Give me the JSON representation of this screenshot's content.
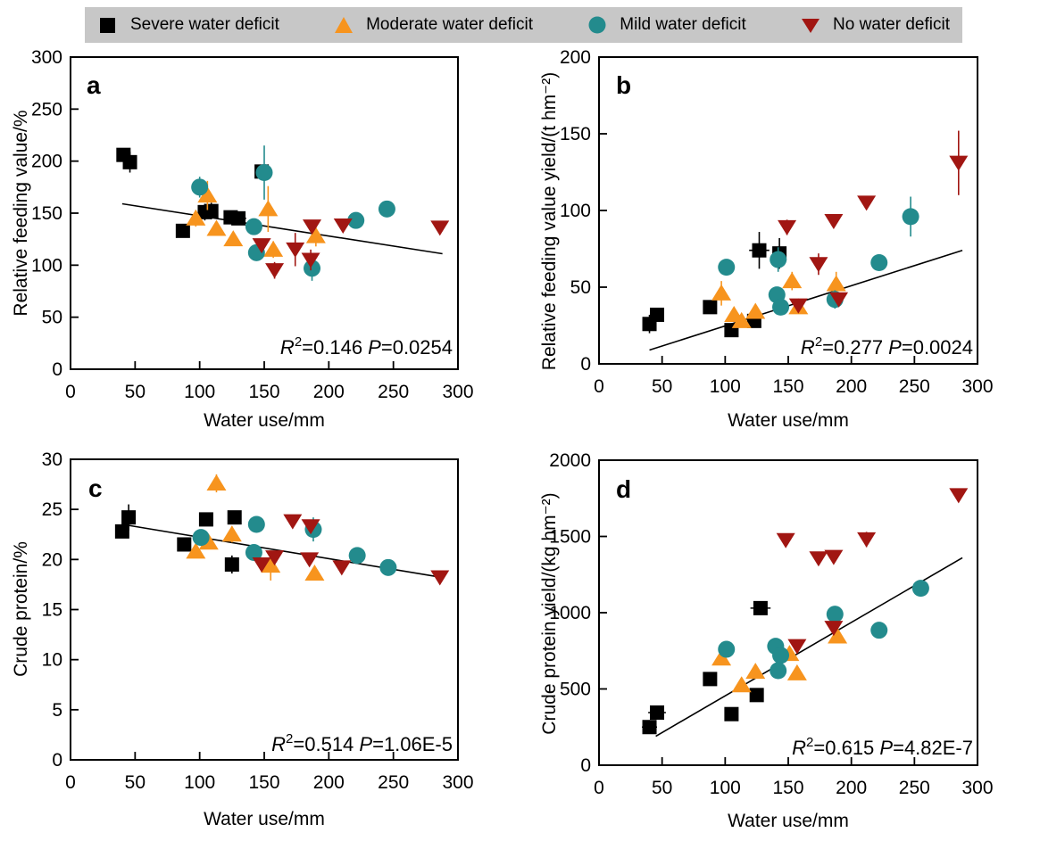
{
  "legend": {
    "background": "#c7c7c7",
    "items": [
      {
        "label": "Severe water deficit",
        "marker": "square",
        "color": "#000000"
      },
      {
        "label": "Moderate water deficit",
        "marker": "triangle-up",
        "color": "#f7941e"
      },
      {
        "label": "Mild water deficit",
        "marker": "circle",
        "color": "#238b8d"
      },
      {
        "label": "No water deficit",
        "marker": "triangle-down",
        "color": "#a11612"
      }
    ]
  },
  "chart_data": [
    {
      "id": "a",
      "type": "scatter",
      "panel_letter": "a",
      "xlabel": "Water use/mm",
      "ylabel": "Relative feeding value/%",
      "xlim": [
        0,
        300
      ],
      "ylim": [
        0,
        300
      ],
      "xticks": [
        0,
        50,
        100,
        150,
        200,
        250,
        300
      ],
      "yticks": [
        0,
        50,
        100,
        150,
        200,
        250,
        300
      ],
      "annotation": {
        "r2": "0.146",
        "p": "0.0254"
      },
      "trendline": {
        "x1": 40,
        "y1": 159,
        "x2": 288,
        "y2": 111
      },
      "legend_position": "none",
      "grid": false,
      "series": [
        {
          "name": "Severe water deficit",
          "marker": "square",
          "color": "#000000",
          "points": [
            [
              41,
              206,
              5,
              4
            ],
            [
              46,
              199,
              10,
              5
            ],
            [
              87,
              133,
              3
            ],
            [
              104,
              151,
              8
            ],
            [
              109,
              152,
              8
            ],
            [
              124,
              146,
              4
            ],
            [
              130,
              145,
              4,
              6
            ],
            [
              148,
              190,
              0
            ]
          ]
        },
        {
          "name": "Moderate water deficit",
          "marker": "triangle-up",
          "color": "#f7941e",
          "points": [
            [
              97,
              145,
              8
            ],
            [
              106,
              167,
              14
            ],
            [
              113,
              135,
              6
            ],
            [
              126,
              125,
              5
            ],
            [
              153,
              154,
              22
            ],
            [
              157,
              115,
              8
            ],
            [
              190,
              128,
              10
            ]
          ]
        },
        {
          "name": "Mild water deficit",
          "marker": "circle",
          "color": "#238b8d",
          "points": [
            [
              100,
              175,
              10
            ],
            [
              142,
              137,
              5
            ],
            [
              150,
              189,
              26
            ],
            [
              144,
              112,
              6
            ],
            [
              187,
              97,
              12
            ],
            [
              221,
              143,
              4
            ],
            [
              245,
              154,
              3
            ]
          ]
        },
        {
          "name": "No water deficit",
          "marker": "triangle-down",
          "color": "#a11612",
          "points": [
            [
              148,
              119,
              6
            ],
            [
              158,
              95,
              8
            ],
            [
              174,
              115,
              16
            ],
            [
              186,
              105,
              10
            ],
            [
              187,
              137,
              4
            ],
            [
              211,
              138,
              5
            ],
            [
              286,
              136,
              4
            ]
          ]
        }
      ]
    },
    {
      "id": "b",
      "type": "scatter",
      "panel_letter": "b",
      "xlabel": "Water use/mm",
      "ylabel": "Relative feeding value yield/(t hm⁻²)",
      "xlim": [
        0,
        300
      ],
      "ylim": [
        0,
        200
      ],
      "xticks": [
        0,
        50,
        100,
        150,
        200,
        250,
        300
      ],
      "yticks": [
        0,
        50,
        100,
        150,
        200
      ],
      "annotation": {
        "r2": "0.277",
        "p": "0.0024"
      },
      "trendline": {
        "x1": 40,
        "y1": 9,
        "x2": 288,
        "y2": 74
      },
      "legend_position": "none",
      "grid": false,
      "series": [
        {
          "name": "Severe water deficit",
          "marker": "square",
          "color": "#000000",
          "points": [
            [
              40,
              26,
              6,
              5
            ],
            [
              46,
              32,
              4
            ],
            [
              88,
              37,
              3
            ],
            [
              105,
              22,
              3
            ],
            [
              123,
              28,
              2
            ],
            [
              127,
              74,
              12,
              8
            ],
            [
              143,
              72,
              10
            ]
          ]
        },
        {
          "name": "Moderate water deficit",
          "marker": "triangle-up",
          "color": "#f7941e",
          "points": [
            [
              97,
              46,
              8
            ],
            [
              107,
              32,
              3
            ],
            [
              113,
              28,
              2
            ],
            [
              124,
              34,
              3
            ],
            [
              153,
              54,
              6
            ],
            [
              158,
              37,
              3
            ],
            [
              188,
              52,
              8
            ]
          ]
        },
        {
          "name": "Mild water deficit",
          "marker": "circle",
          "color": "#238b8d",
          "points": [
            [
              101,
              63,
              3
            ],
            [
              141,
              45,
              3
            ],
            [
              144,
              37,
              2
            ],
            [
              142,
              68,
              8
            ],
            [
              187,
              42,
              6
            ],
            [
              222,
              66,
              3
            ],
            [
              247,
              96,
              13
            ]
          ]
        },
        {
          "name": "No water deficit",
          "marker": "triangle-down",
          "color": "#a11612",
          "points": [
            [
              149,
              89,
              5
            ],
            [
              158,
              38,
              3
            ],
            [
              174,
              65,
              7
            ],
            [
              186,
              93,
              4
            ],
            [
              190,
              42,
              4
            ],
            [
              212,
              105,
              4
            ],
            [
              285,
              131,
              21
            ]
          ]
        }
      ]
    },
    {
      "id": "c",
      "type": "scatter",
      "panel_letter": "c",
      "xlabel": "Water use/mm",
      "ylabel": "Crude protein/%",
      "xlim": [
        0,
        300
      ],
      "ylim": [
        0,
        30
      ],
      "xticks": [
        0,
        50,
        100,
        150,
        200,
        250,
        300
      ],
      "yticks": [
        0,
        5,
        10,
        15,
        20,
        25,
        30
      ],
      "annotation": {
        "r2": "0.514",
        "p": "1.06E-5"
      },
      "trendline": {
        "x1": 45,
        "y1": 23.4,
        "x2": 288,
        "y2": 18.2
      },
      "legend_position": "none",
      "grid": false,
      "series": [
        {
          "name": "Severe water deficit",
          "marker": "square",
          "color": "#000000",
          "points": [
            [
              40,
              22.8,
              0.6
            ],
            [
              45,
              24.2,
              1.3,
              5
            ],
            [
              88,
              21.5,
              0.5
            ],
            [
              105,
              24,
              0.4
            ],
            [
              125,
              19.5,
              0.9,
              4
            ],
            [
              127,
              24.2,
              0.5
            ]
          ]
        },
        {
          "name": "Moderate water deficit",
          "marker": "triangle-up",
          "color": "#f7941e",
          "points": [
            [
              97,
              20.8,
              0.4
            ],
            [
              107,
              21.7,
              0.4
            ],
            [
              113,
              27.6,
              0.9
            ],
            [
              125,
              22.5,
              0.8
            ],
            [
              155,
              19.4,
              1.5
            ],
            [
              189,
              18.6,
              0.4
            ]
          ]
        },
        {
          "name": "Mild water deficit",
          "marker": "circle",
          "color": "#238b8d",
          "points": [
            [
              101,
              22.2,
              0.3
            ],
            [
              142,
              20.7,
              0.4
            ],
            [
              144,
              23.5,
              0.3
            ],
            [
              188,
              23,
              1.2
            ],
            [
              222,
              20.4,
              0.3
            ],
            [
              246,
              19.2,
              0.3
            ]
          ]
        },
        {
          "name": "No water deficit",
          "marker": "triangle-down",
          "color": "#a11612",
          "points": [
            [
              148,
              19.5,
              0.6
            ],
            [
              158,
              20.2,
              0.4
            ],
            [
              172,
              23.8,
              0.3
            ],
            [
              185,
              20,
              0.5
            ],
            [
              186,
              23.3,
              0.4
            ],
            [
              210,
              19.2,
              0.4
            ],
            [
              286,
              18.2,
              0.6
            ]
          ]
        }
      ]
    },
    {
      "id": "d",
      "type": "scatter",
      "panel_letter": "d",
      "xlabel": "Water use/mm",
      "ylabel": "Crude protein yield/(kg hm⁻²)",
      "xlim": [
        0,
        300
      ],
      "ylim": [
        0,
        2000
      ],
      "xticks": [
        0,
        50,
        100,
        150,
        200,
        250,
        300
      ],
      "yticks": [
        0,
        500,
        1000,
        1500,
        2000
      ],
      "annotation": {
        "r2": "0.615",
        "p": "4.82E-7"
      },
      "trendline": {
        "x1": 45,
        "y1": 190,
        "x2": 288,
        "y2": 1360
      },
      "legend_position": "none",
      "grid": false,
      "series": [
        {
          "name": "Severe water deficit",
          "marker": "square",
          "color": "#000000",
          "points": [
            [
              40,
              250,
              45,
              6
            ],
            [
              46,
              345,
              40,
              7
            ],
            [
              88,
              565,
              30
            ],
            [
              105,
              335,
              25
            ],
            [
              125,
              460,
              25
            ],
            [
              128,
              1030,
              45,
              8
            ]
          ]
        },
        {
          "name": "Moderate water deficit",
          "marker": "triangle-up",
          "color": "#f7941e",
          "points": [
            [
              97,
              700,
              30
            ],
            [
              113,
              525,
              25
            ],
            [
              124,
              613,
              20
            ],
            [
              151,
              730,
              25
            ],
            [
              157,
              603,
              20
            ],
            [
              189,
              845,
              30
            ]
          ]
        },
        {
          "name": "Mild water deficit",
          "marker": "circle",
          "color": "#238b8d",
          "points": [
            [
              101,
              760,
              20
            ],
            [
              140,
              780,
              25
            ],
            [
              144,
              720,
              20
            ],
            [
              142,
              620,
              20
            ],
            [
              187,
              990,
              55
            ],
            [
              222,
              885,
              20
            ],
            [
              255,
              1160,
              25
            ]
          ]
        },
        {
          "name": "No water deficit",
          "marker": "triangle-down",
          "color": "#a11612",
          "points": [
            [
              148,
              1475,
              45
            ],
            [
              157,
              780,
              20
            ],
            [
              174,
              1355,
              25
            ],
            [
              186,
              1365,
              20
            ],
            [
              186,
              900,
              25
            ],
            [
              212,
              1480,
              50
            ],
            [
              285,
              1770,
              30
            ]
          ]
        }
      ]
    }
  ]
}
